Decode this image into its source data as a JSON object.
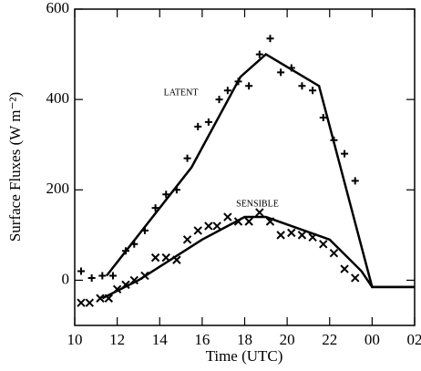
{
  "chart_data": {
    "type": "line",
    "xlabel": "Time (UTC)",
    "ylabel": "Surface Fluxes (W m⁻²)",
    "xlim": [
      10,
      26
    ],
    "xticks": [
      10,
      12,
      14,
      16,
      18,
      20,
      22,
      {
        "value": 24,
        "label": "00"
      },
      {
        "value": 26,
        "label": "02"
      }
    ],
    "ylim": [
      -100,
      600
    ],
    "yticks": [
      0,
      200,
      400,
      600
    ],
    "annotations": [
      {
        "text": "LATENT",
        "x": 15,
        "y": 414
      },
      {
        "text": "SENSIBLE",
        "x": 18.6,
        "y": 168
      }
    ],
    "series": [
      {
        "color": "#000000",
        "style": "line",
        "x": [
          11.5,
          15.5,
          17.8,
          19,
          21.5,
          24,
          26
        ],
        "values": [
          10,
          250,
          450,
          500,
          430,
          -15,
          -15
        ]
      },
      {
        "color": "#000000",
        "style": "line",
        "x": [
          11.3,
          13,
          16,
          18,
          19,
          22,
          23.5,
          24,
          26
        ],
        "values": [
          -40,
          0,
          90,
          140,
          140,
          90,
          20,
          -15,
          -15
        ]
      },
      {
        "color": "#000000",
        "style": "plus",
        "x": [
          10.3,
          10.8,
          11.3,
          11.8,
          12.4,
          12.8,
          13.3,
          13.8,
          14.3,
          14.8,
          15.3,
          15.8,
          16.3,
          16.8,
          17.2,
          17.7,
          18.2,
          18.7,
          19.2,
          19.7,
          20.2,
          20.7,
          21.2,
          21.7,
          22.2,
          22.7,
          23.2
        ],
        "values": [
          20,
          5,
          10,
          10,
          65,
          80,
          110,
          160,
          190,
          200,
          270,
          340,
          350,
          400,
          420,
          440,
          430,
          500,
          535,
          460,
          470,
          430,
          420,
          360,
          310,
          280,
          220
        ]
      },
      {
        "color": "#000000",
        "style": "cross",
        "x": [
          10.3,
          10.7,
          11.2,
          11.6,
          12,
          12.4,
          12.8,
          13.3,
          13.8,
          14.3,
          14.8,
          15.3,
          15.8,
          16.3,
          16.7,
          17.2,
          17.7,
          18.2,
          18.7,
          19.2,
          19.7,
          20.2,
          20.7,
          21.2,
          21.7,
          22.2,
          22.7,
          23.2
        ],
        "values": [
          -50,
          -50,
          -40,
          -40,
          -20,
          -10,
          0,
          10,
          50,
          50,
          45,
          90,
          110,
          120,
          120,
          140,
          130,
          130,
          150,
          130,
          100,
          105,
          100,
          95,
          80,
          60,
          25,
          5
        ]
      }
    ]
  }
}
